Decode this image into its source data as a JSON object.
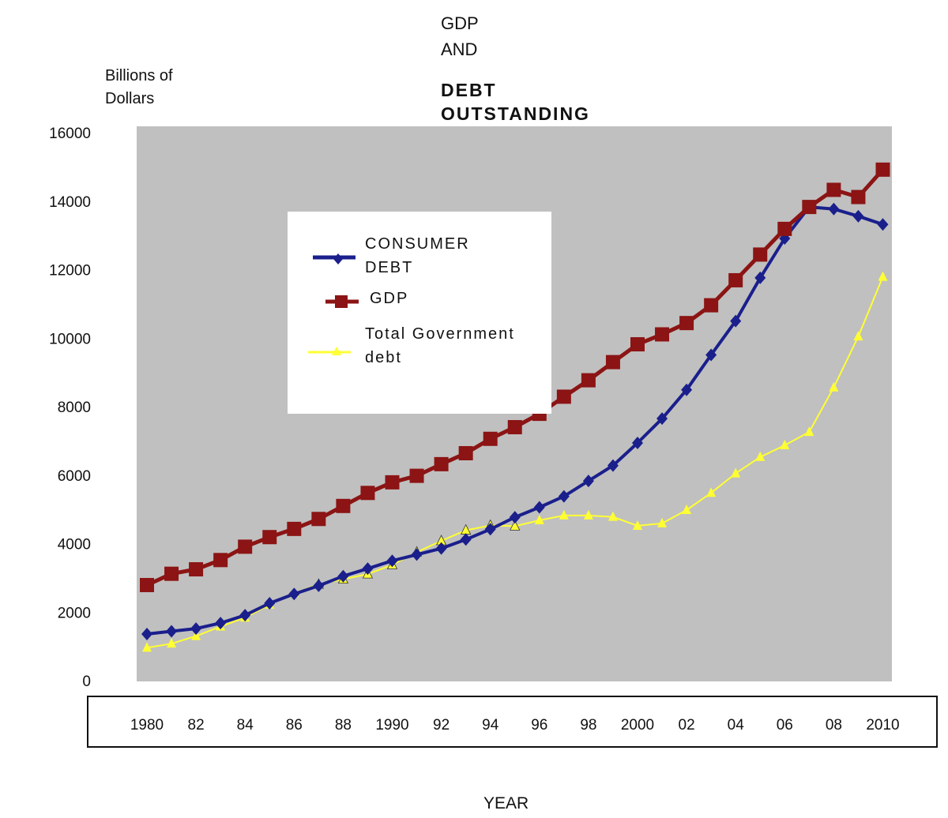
{
  "title_lines": [
    "GDP",
    "AND",
    "DEBT",
    "OUTSTANDING"
  ],
  "y_axis_title": "Billions of\nDollars",
  "x_axis_title": "YEAR",
  "colors": {
    "plot_bg": "#c0c0c0",
    "consumer_debt": "#1a1f8c",
    "gdp": "#8c1414",
    "gov_debt": "#ffff33"
  },
  "legend": {
    "items": [
      {
        "label": "CONSUMER\nDEBT",
        "marker": "diamond",
        "series": "consumer_debt"
      },
      {
        "label": "GDP",
        "marker": "square",
        "series": "gdp"
      },
      {
        "label": "Total Government\ndebt",
        "marker": "triangle",
        "series": "gov_debt"
      }
    ]
  },
  "chart_data": {
    "type": "line",
    "title": "GDP AND DEBT OUTSTANDING",
    "xlabel": "YEAR",
    "ylabel": "Billions of Dollars",
    "ylim": [
      0,
      16000
    ],
    "yticks": [
      0,
      2000,
      4000,
      6000,
      8000,
      10000,
      12000,
      14000,
      16000
    ],
    "xtick_labels": [
      "1980",
      "82",
      "84",
      "86",
      "88",
      "1990",
      "92",
      "94",
      "96",
      "98",
      "2000",
      "02",
      "04",
      "06",
      "08",
      "2010"
    ],
    "x": [
      1980,
      1981,
      1982,
      1983,
      1984,
      1985,
      1986,
      1987,
      1988,
      1989,
      1990,
      1991,
      1992,
      1993,
      1994,
      1995,
      1996,
      1997,
      1998,
      1999,
      2000,
      2001,
      2002,
      2003,
      2004,
      2005,
      2006,
      2007,
      2008,
      2009,
      2010
    ],
    "series": [
      {
        "name": "CONSUMER DEBT",
        "marker": "diamond",
        "values": [
          1360,
          1440,
          1520,
          1680,
          1910,
          2260,
          2530,
          2770,
          3050,
          3270,
          3500,
          3680,
          3860,
          4120,
          4420,
          4770,
          5060,
          5380,
          5830,
          6280,
          6940,
          7650,
          8490,
          9510,
          10500,
          11760,
          12910,
          13830,
          13770,
          13560,
          13320
        ]
      },
      {
        "name": "GDP",
        "marker": "square",
        "values": [
          2790,
          3120,
          3250,
          3520,
          3910,
          4190,
          4430,
          4720,
          5100,
          5480,
          5790,
          5980,
          6320,
          6640,
          7060,
          7400,
          7790,
          8290,
          8770,
          9300,
          9820,
          10110,
          10440,
          10960,
          11690,
          12440,
          13190,
          13830,
          14330,
          14120,
          14920
        ]
      },
      {
        "name": "Total Government debt",
        "marker": "triangle",
        "values": [
          960,
          1080,
          1300,
          1580,
          1840,
          2220,
          2550,
          2810,
          2960,
          3110,
          3380,
          3750,
          4080,
          4390,
          4530,
          4510,
          4680,
          4820,
          4820,
          4780,
          4520,
          4590,
          4980,
          5480,
          6050,
          6530,
          6870,
          7260,
          8560,
          10050,
          11790
        ]
      }
    ]
  }
}
